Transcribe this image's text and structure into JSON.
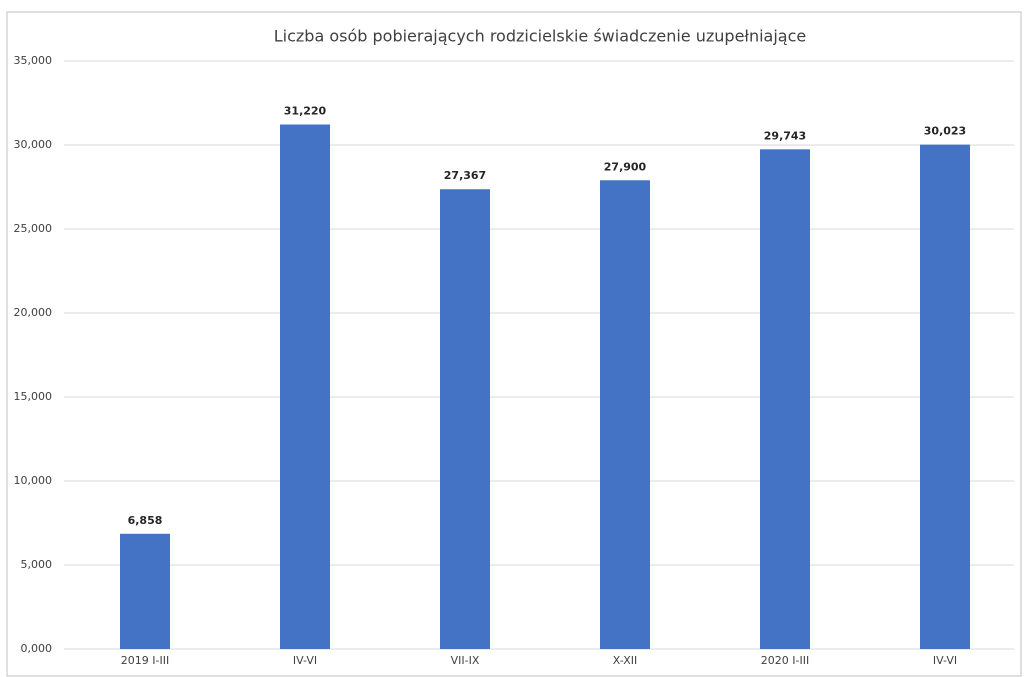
{
  "chart_data": {
    "type": "bar",
    "title": "Liczba osób pobierających rodzicielskie świadczenie uzupełniające",
    "categories": [
      "2019 I-III",
      "IV-VI",
      "VII-IX",
      "X-XII",
      "2020 I-III",
      "IV-VI"
    ],
    "values": [
      6858,
      31220,
      27367,
      27900,
      29743,
      30023
    ],
    "value_labels": [
      "6,858",
      "31,220",
      "27,367",
      "27,900",
      "29,743",
      "30,023"
    ],
    "color": "#4472c4",
    "ylim": [
      0,
      35000
    ],
    "yticks": [
      {
        "value": 0,
        "label": "0,000"
      },
      {
        "value": 5000,
        "label": "5,000"
      },
      {
        "value": 10000,
        "label": "10,000"
      },
      {
        "value": 15000,
        "label": "15,000"
      },
      {
        "value": 20000,
        "label": "20,000"
      },
      {
        "value": 25000,
        "label": "25,000"
      },
      {
        "value": 30000,
        "label": "30,000"
      },
      {
        "value": 35000,
        "label": "35,000"
      }
    ],
    "grid": true
  }
}
